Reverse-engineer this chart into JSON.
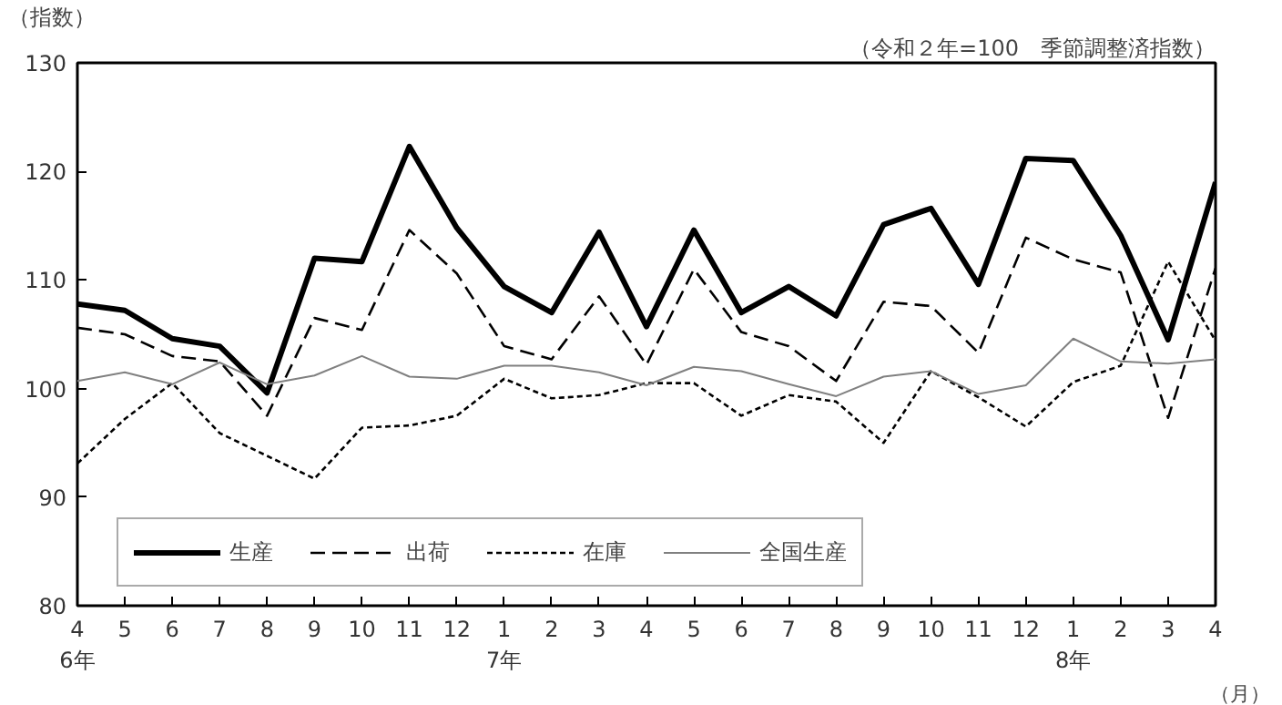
{
  "chart_data": {
    "type": "line",
    "subtitle": "（令和２年=100　季節調整済指数）",
    "ylabel": "（指数）",
    "xlabel": "（月）",
    "categories": [
      "4\n6年",
      "5",
      "6",
      "7",
      "8",
      "9",
      "10",
      "11",
      "12",
      "1\n7年",
      "2",
      "3",
      "4",
      "5",
      "6",
      "7",
      "8",
      "9",
      "10",
      "11",
      "12",
      "1\n8年",
      "2",
      "3",
      "4"
    ],
    "ylim": [
      80,
      130
    ],
    "yticks": [
      80,
      90,
      100,
      110,
      120,
      130
    ],
    "grid": false,
    "legend": "bottom left",
    "marker": "none",
    "series": [
      {
        "name": "生産",
        "color": "#000000",
        "line_style": "solid",
        "values": [
          107.8,
          107.2,
          104.6,
          103.9,
          99.6,
          112.0,
          111.7,
          122.3,
          114.8,
          109.4,
          107.0,
          114.4,
          105.7,
          114.6,
          107.0,
          109.4,
          106.7,
          115.1,
          116.6,
          109.6,
          121.2,
          121.0,
          114.1,
          104.5,
          119.0
        ]
      },
      {
        "name": "出荷",
        "color": "#000000",
        "line_style": "dashed",
        "values": [
          105.6,
          105.0,
          103.0,
          102.5,
          97.5,
          106.5,
          105.4,
          114.6,
          110.6,
          103.9,
          102.7,
          108.5,
          102.2,
          111.0,
          105.2,
          103.9,
          100.7,
          108.0,
          107.6,
          103.3,
          113.9,
          111.9,
          110.7,
          97.3,
          111.1
        ]
      },
      {
        "name": "在庫",
        "color": "#000000",
        "line_style": "dotted",
        "values": [
          93.1,
          97.2,
          100.5,
          95.9,
          93.8,
          91.7,
          96.4,
          96.6,
          97.5,
          100.9,
          99.1,
          99.4,
          100.5,
          100.5,
          97.5,
          99.4,
          98.8,
          95.0,
          101.6,
          99.2,
          96.5,
          100.6,
          102.1,
          111.7,
          104.4
        ]
      },
      {
        "name": "全国生産",
        "color": "#808080",
        "line_style": "solid",
        "values": [
          100.7,
          101.5,
          100.4,
          102.4,
          100.4,
          101.2,
          103.0,
          101.1,
          100.9,
          102.1,
          102.1,
          101.5,
          100.3,
          102.0,
          101.6,
          100.4,
          99.3,
          101.1,
          101.6,
          99.5,
          100.3,
          104.6,
          102.5,
          102.3,
          102.7
        ]
      }
    ]
  }
}
